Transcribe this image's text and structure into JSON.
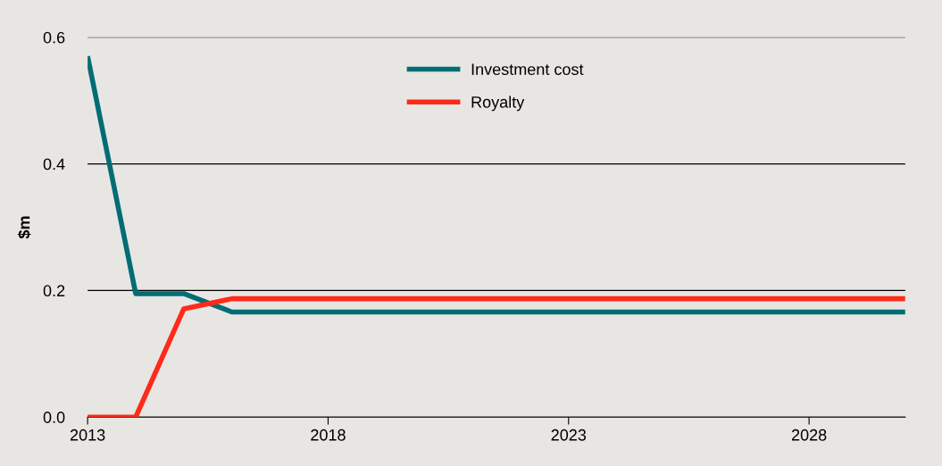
{
  "chart_data": {
    "type": "line",
    "ylabel": "$m",
    "x": [
      2013,
      2014,
      2015,
      2016,
      2017,
      2018,
      2019,
      2020,
      2021,
      2022,
      2023,
      2024,
      2025,
      2026,
      2027,
      2028,
      2029,
      2030
    ],
    "series": [
      {
        "name": "Investment cost",
        "color": "#006d75",
        "values": [
          0.57,
          0.195,
          0.195,
          0.166,
          0.166,
          0.166,
          0.166,
          0.166,
          0.166,
          0.166,
          0.166,
          0.166,
          0.166,
          0.166,
          0.166,
          0.166,
          0.166,
          0.166
        ]
      },
      {
        "name": "Royalty",
        "color": "#ff2a1a",
        "values": [
          0,
          0,
          0.171,
          0.187,
          0.187,
          0.187,
          0.187,
          0.187,
          0.187,
          0.187,
          0.187,
          0.187,
          0.187,
          0.187,
          0.187,
          0.187,
          0.187,
          0.187
        ]
      }
    ],
    "xlim": [
      2013,
      2030
    ],
    "xticks": [
      2013,
      2018,
      2023,
      2028
    ],
    "ylim": [
      0,
      0.6
    ],
    "yticks": [
      {
        "value": 0,
        "label": "0.0"
      },
      {
        "value": 0.2,
        "label": "0.2"
      },
      {
        "value": 0.4,
        "label": "0.4"
      },
      {
        "value": 0.6,
        "label": "0.6"
      }
    ],
    "grid": "y",
    "legend": "top",
    "marker": "none",
    "line_style": "solid"
  }
}
